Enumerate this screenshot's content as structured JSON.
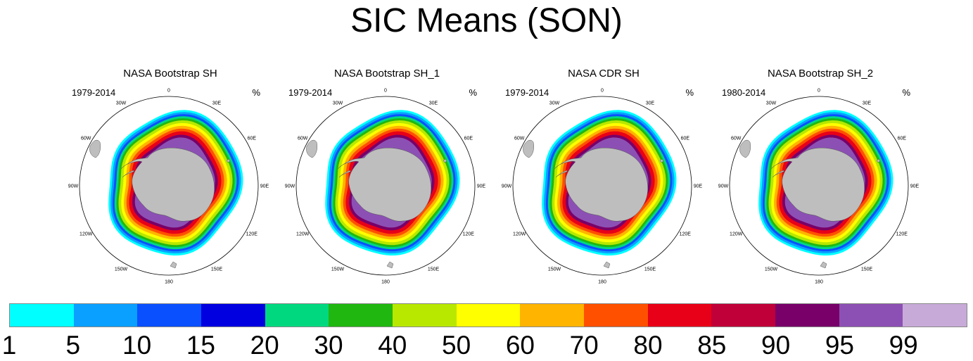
{
  "title": "SIC Means (SON)",
  "panels": [
    {
      "title": "NASA Bootstrap SH",
      "years": "1979-2014",
      "unit": "%"
    },
    {
      "title": "NASA Bootstrap SH_1",
      "years": "1979-2014",
      "unit": "%"
    },
    {
      "title": "NASA CDR SH",
      "years": "1979-2014",
      "unit": "%"
    },
    {
      "title": "NASA Bootstrap SH_2",
      "years": "1980-2014",
      "unit": "%"
    }
  ],
  "longitude_labels": [
    "0",
    "30E",
    "60E",
    "90E",
    "120E",
    "150E",
    "180",
    "150W",
    "120W",
    "90W",
    "60W",
    "30W"
  ],
  "colorbar": {
    "labels": [
      "1",
      "5",
      "10",
      "15",
      "20",
      "30",
      "40",
      "50",
      "60",
      "70",
      "80",
      "85",
      "90",
      "95",
      "99"
    ],
    "colors": [
      "#00ffff",
      "#0aa0ff",
      "#0a50ff",
      "#0000e0",
      "#00d880",
      "#20b810",
      "#b8e800",
      "#ffff00",
      "#ffb400",
      "#ff5000",
      "#e80018",
      "#c00038",
      "#780068",
      "#8c50b4",
      "#c8aad8"
    ]
  },
  "colors": {
    "land": "#bebebe",
    "land_edge": "#555555"
  }
}
